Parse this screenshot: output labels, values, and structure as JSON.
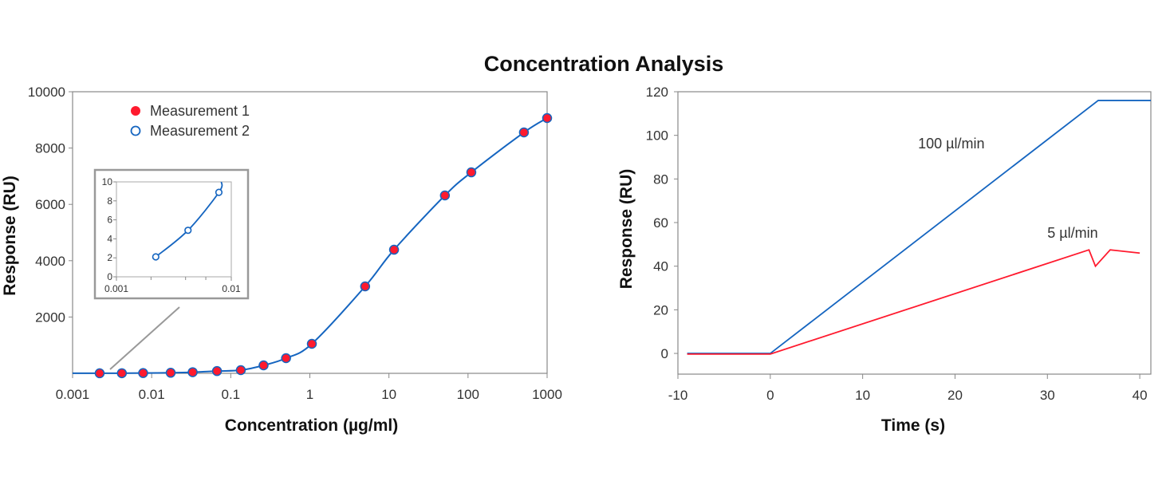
{
  "title": "Concentration Analysis",
  "colors": {
    "blue": "#1565c0",
    "red": "#ff1a2e",
    "axis": "#888888",
    "inset_border": "#999999"
  },
  "chart_data": [
    {
      "type": "scatter",
      "xscale": "log",
      "xlabel": "Concentration (µg/ml)",
      "ylabel": "Response (RU)",
      "xlim": [
        0.001,
        1000
      ],
      "ylim": [
        0,
        10000
      ],
      "xticks": [
        "0.001",
        "0.01",
        "0.1",
        "1",
        "10",
        "100",
        "1000"
      ],
      "xtick_values": [
        0.001,
        0.01,
        0.1,
        1,
        10,
        100,
        1000
      ],
      "yticks": [
        "10000",
        "8000",
        "6000",
        "4000",
        "2000"
      ],
      "ytick_values": [
        10000,
        8000,
        6000,
        4000,
        2000
      ],
      "legend": [
        "Measurement 1",
        "Measurement 2"
      ],
      "legend_position": "top-left",
      "series": [
        {
          "name": "Measurement 1",
          "x": [
            0.0022,
            0.0042,
            0.0078,
            0.0174,
            0.033,
            0.067,
            0.134,
            0.26,
            0.5,
            1.06,
            5.0,
            11.6,
            51,
            110,
            509,
            1000
          ],
          "y": [
            2,
            5,
            9,
            20,
            40,
            80,
            113,
            283,
            538,
            1048,
            3088,
            4390,
            6317,
            7138,
            8555,
            9065
          ]
        },
        {
          "name": "Measurement 2",
          "x": [
            0.0022,
            0.0042,
            0.0078
          ],
          "y": [
            2.1,
            4.9,
            8.9
          ]
        }
      ],
      "inset": {
        "xscale": "log",
        "xlim": [
          0.001,
          0.01
        ],
        "ylim": [
          0,
          10
        ],
        "xticks": [
          "0.001",
          "0.01"
        ],
        "xtick_values": [
          0.001,
          0.01
        ],
        "minor_xtick_values": [
          0.002,
          0.004,
          0.006
        ],
        "yticks": [
          "10",
          "8",
          "6",
          "4",
          "2",
          "0"
        ],
        "ytick_values": [
          10,
          8,
          6,
          4,
          2,
          0
        ]
      }
    },
    {
      "type": "line",
      "xlabel": "Time (s)",
      "ylabel": "Response (RU)",
      "xlim": [
        -10,
        41.2
      ],
      "ylim": [
        -9.5,
        120
      ],
      "xticks": [
        "-10",
        "0",
        "10",
        "20",
        "30",
        "40"
      ],
      "xtick_values": [
        -10,
        0,
        10,
        20,
        30,
        40
      ],
      "yticks": [
        "120",
        "100",
        "80",
        "60",
        "40",
        "20",
        "0"
      ],
      "ytick_values": [
        120,
        100,
        80,
        60,
        40,
        20,
        0
      ],
      "series": [
        {
          "name": "100 µl/min",
          "x": [
            -9,
            0,
            35.5,
            41.2
          ],
          "y": [
            0,
            0,
            116,
            116
          ],
          "label_at": [
            16,
            94
          ]
        },
        {
          "name": "5 µl/min",
          "x": [
            -9,
            0,
            34.5,
            35.2,
            36.8,
            40
          ],
          "y": [
            -0.3,
            -0.3,
            47.5,
            40,
            47.5,
            46
          ],
          "label_at": [
            30,
            53
          ]
        }
      ]
    }
  ]
}
